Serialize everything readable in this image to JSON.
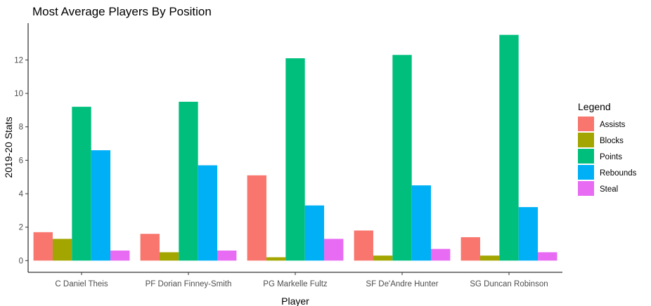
{
  "chart_data": {
    "type": "bar",
    "title": "Most Average Players By Position",
    "xlabel": "Player",
    "ylabel": "2019-20 Stats",
    "categories": [
      "C Daniel Theis",
      "PF Dorian Finney-Smith",
      "PG Markelle Fultz",
      "SF De'Andre Hunter",
      "SG Duncan Robinson"
    ],
    "series": [
      {
        "name": "Assists",
        "color": "#F8766D",
        "values": [
          1.7,
          1.6,
          5.1,
          1.8,
          1.4
        ]
      },
      {
        "name": "Blocks",
        "color": "#A3A500",
        "values": [
          1.3,
          0.5,
          0.2,
          0.3,
          0.3
        ]
      },
      {
        "name": "Points",
        "color": "#00BF7D",
        "values": [
          9.2,
          9.5,
          12.1,
          12.3,
          13.5
        ]
      },
      {
        "name": "Rebounds",
        "color": "#00B0F6",
        "values": [
          6.6,
          5.7,
          3.3,
          4.5,
          3.2
        ]
      },
      {
        "name": "Steal",
        "color": "#E76BF3",
        "values": [
          0.6,
          0.6,
          1.3,
          0.7,
          0.5
        ]
      }
    ],
    "ylim": [
      -0.7,
      14.2
    ],
    "yticks": [
      0,
      2,
      4,
      6,
      8,
      10,
      12
    ],
    "grid": false,
    "legend": {
      "title": "Legend",
      "position": "right"
    }
  }
}
